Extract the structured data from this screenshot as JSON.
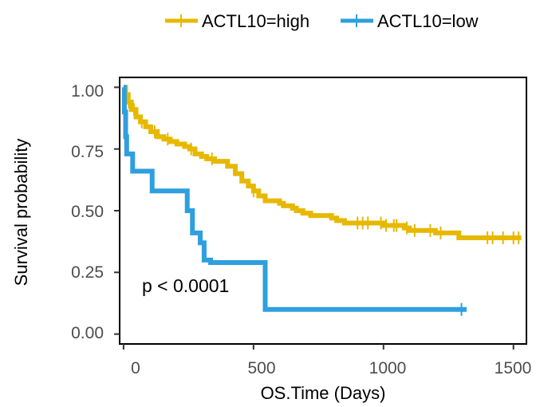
{
  "chart_data": {
    "type": "line",
    "subtype": "kaplan-meier",
    "xlabel": "OS.Time (Days)",
    "ylabel": "Survival probability",
    "xlim": [
      -15,
      1550
    ],
    "ylim": [
      -0.04,
      1.04
    ],
    "xticks": [
      0,
      500,
      1000,
      1500
    ],
    "xtick_labels": [
      "0",
      "500",
      "1000",
      "1500"
    ],
    "yticks": [
      0,
      0.25,
      0.5,
      0.75,
      1
    ],
    "ytick_labels": [
      "0.00",
      "0.25",
      "0.50",
      "0.75",
      "1.00"
    ],
    "legend_position": "top",
    "annotation": {
      "text": "p < 0.0001",
      "x": 30,
      "y": 0.19
    },
    "series": [
      {
        "name": "ACTL10=high",
        "color": "#E7B800",
        "steps": [
          [
            0,
            1.0
          ],
          [
            8,
            0.97
          ],
          [
            18,
            0.94
          ],
          [
            30,
            0.91
          ],
          [
            48,
            0.88
          ],
          [
            65,
            0.86
          ],
          [
            85,
            0.84
          ],
          [
            105,
            0.82
          ],
          [
            130,
            0.8
          ],
          [
            155,
            0.79
          ],
          [
            180,
            0.78
          ],
          [
            205,
            0.77
          ],
          [
            235,
            0.76
          ],
          [
            255,
            0.75
          ],
          [
            275,
            0.73
          ],
          [
            300,
            0.72
          ],
          [
            320,
            0.71
          ],
          [
            350,
            0.7
          ],
          [
            400,
            0.68
          ],
          [
            430,
            0.65
          ],
          [
            455,
            0.62
          ],
          [
            480,
            0.6
          ],
          [
            500,
            0.58
          ],
          [
            520,
            0.56
          ],
          [
            545,
            0.54
          ],
          [
            600,
            0.53
          ],
          [
            615,
            0.52
          ],
          [
            650,
            0.51
          ],
          [
            665,
            0.5
          ],
          [
            690,
            0.49
          ],
          [
            720,
            0.48
          ],
          [
            780,
            0.48
          ],
          [
            800,
            0.47
          ],
          [
            820,
            0.46
          ],
          [
            850,
            0.45
          ],
          [
            900,
            0.45
          ],
          [
            1000,
            0.44
          ],
          [
            1080,
            0.43
          ],
          [
            1100,
            0.42
          ],
          [
            1200,
            0.41
          ],
          [
            1270,
            0.41
          ],
          [
            1290,
            0.39
          ],
          [
            1530,
            0.39
          ]
        ],
        "censor_times": [
          20,
          40,
          70,
          120,
          170,
          260,
          340,
          500,
          900,
          920,
          940,
          990,
          1010,
          1040,
          1050,
          1090,
          1120,
          1180,
          1220,
          1400,
          1420,
          1460,
          1500,
          1520
        ]
      },
      {
        "name": "ACTL10=low",
        "color": "#2E9FDF",
        "steps": [
          [
            0,
            1.0
          ],
          [
            3,
            0.9
          ],
          [
            8,
            0.8
          ],
          [
            12,
            0.73
          ],
          [
            35,
            0.66
          ],
          [
            110,
            0.58
          ],
          [
            245,
            0.5
          ],
          [
            265,
            0.41
          ],
          [
            295,
            0.37
          ],
          [
            310,
            0.3
          ],
          [
            335,
            0.29
          ],
          [
            540,
            0.29
          ],
          [
            545,
            0.1
          ],
          [
            1320,
            0.1
          ]
        ],
        "censor_times": [
          5,
          1300
        ]
      }
    ]
  }
}
